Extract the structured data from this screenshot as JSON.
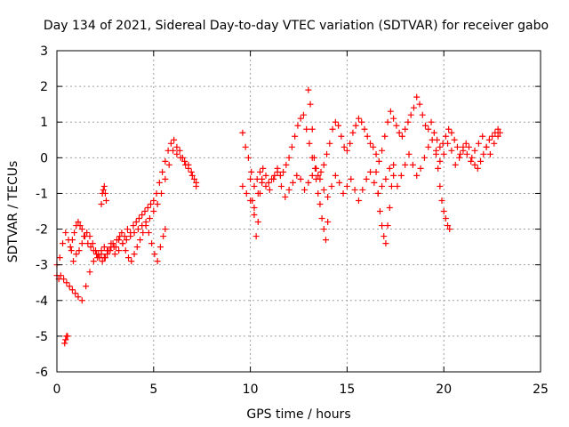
{
  "chart_data": {
    "type": "scatter",
    "title": "Day 134 of 2021, Sidereal Day-to-day VTEC variation (SDTVAR) for receiver gabo",
    "xlabel": "GPS time / hours",
    "ylabel": "SDTVAR / TECUs",
    "xlim": [
      0,
      25
    ],
    "ylim": [
      -6,
      3
    ],
    "grid": true,
    "marker": "+",
    "color": "#ff0000",
    "x_ticks": [
      0,
      5,
      10,
      15,
      20,
      25
    ],
    "x_tick_labels": [
      "0",
      "5",
      "10",
      "15",
      "20",
      "25"
    ],
    "y_ticks": [
      -6,
      -5,
      -4,
      -3,
      -2,
      -1,
      0,
      1,
      2,
      3
    ],
    "y_tick_labels": [
      "-6",
      "-5",
      "-4",
      "-3",
      "-2",
      "-1",
      "0",
      "1",
      "2",
      "3"
    ],
    "series": [
      {
        "name": "SDTVAR",
        "x": [
          0.0,
          0.15,
          0.3,
          0.45,
          0.6,
          0.75,
          0.85,
          1.0,
          1.15,
          1.3,
          1.4,
          1.55,
          1.7,
          1.85,
          2.0,
          2.15,
          2.3,
          2.45,
          2.6,
          2.75,
          2.9,
          3.05,
          3.2,
          3.35,
          3.5,
          3.65,
          3.8,
          3.95,
          4.1,
          4.25,
          4.4,
          4.55,
          4.7,
          4.85,
          5.0,
          5.15,
          5.3,
          5.45,
          5.6,
          5.75,
          5.9,
          6.05,
          6.2,
          6.35,
          6.5,
          6.65,
          6.8,
          6.95,
          7.1,
          7.2,
          0.0,
          0.1,
          0.2,
          0.35,
          0.5,
          0.65,
          0.8,
          0.95,
          1.1,
          1.3,
          1.5,
          1.7,
          1.9,
          2.1,
          2.3,
          2.45,
          2.6,
          2.8,
          3.0,
          3.2,
          3.4,
          3.6,
          3.8,
          4.0,
          4.2,
          4.4,
          4.6,
          4.8,
          5.0,
          5.2,
          5.4,
          5.6,
          5.8,
          6.0,
          6.2,
          6.4,
          6.6,
          6.8,
          7.0,
          7.2,
          0.4,
          0.45,
          0.5,
          0.55,
          2.3,
          2.35,
          2.4,
          2.45,
          2.5,
          2.55,
          0.7,
          0.8,
          0.9,
          1.0,
          1.1,
          1.2,
          1.3,
          1.45,
          1.6,
          1.75,
          1.9,
          2.05,
          2.2,
          2.35,
          2.5,
          2.65,
          2.8,
          2.95,
          3.1,
          3.25,
          3.4,
          3.55,
          3.7,
          3.85,
          4.0,
          4.15,
          4.3,
          4.45,
          4.6,
          4.75,
          4.9,
          5.05,
          5.2,
          5.35,
          5.5,
          5.6,
          9.6,
          9.75,
          9.9,
          10.05,
          10.2,
          10.35,
          10.5,
          10.65,
          10.8,
          10.95,
          11.1,
          11.25,
          11.4,
          11.55,
          11.7,
          11.85,
          12.0,
          12.15,
          12.3,
          12.45,
          12.6,
          12.75,
          12.9,
          13.05,
          13.2,
          13.35,
          13.5,
          13.65,
          13.8,
          13.95,
          14.1,
          14.25,
          14.4,
          14.55,
          14.7,
          14.85,
          15.0,
          15.15,
          15.3,
          15.45,
          15.6,
          15.75,
          15.9,
          16.05,
          16.2,
          16.35,
          16.5,
          16.65,
          16.8,
          16.95,
          17.1,
          17.25,
          17.4,
          17.55,
          17.7,
          17.85,
          18.0,
          18.15,
          18.3,
          18.45,
          18.6,
          18.75,
          18.9,
          19.05,
          19.2,
          19.35,
          19.5,
          19.65,
          19.8,
          19.95,
          20.1,
          20.25,
          20.4,
          20.55,
          20.7,
          20.85,
          21.0,
          21.15,
          21.3,
          21.45,
          21.6,
          21.75,
          21.9,
          22.05,
          22.2,
          22.35,
          22.5,
          22.65,
          22.8,
          22.9,
          9.6,
          9.8,
          10.0,
          10.2,
          10.4,
          10.6,
          10.8,
          11.0,
          11.2,
          11.4,
          11.6,
          11.8,
          12.0,
          12.2,
          12.4,
          12.6,
          12.8,
          13.0,
          13.2,
          13.4,
          13.6,
          13.8,
          14.0,
          14.2,
          14.4,
          14.6,
          14.8,
          15.0,
          15.2,
          15.4,
          15.6,
          15.8,
          16.0,
          16.2,
          16.4,
          16.6,
          16.8,
          17.0,
          17.2,
          17.4,
          17.6,
          17.8,
          18.0,
          18.2,
          18.4,
          18.6,
          18.8,
          19.0,
          19.2,
          19.4,
          19.6,
          19.8,
          20.0,
          20.2,
          20.4,
          20.6,
          20.8,
          21.0,
          21.2,
          21.4,
          21.6,
          21.8,
          22.0,
          22.2,
          22.4,
          22.6,
          22.8,
          10.0,
          10.1,
          10.2,
          10.3,
          10.4,
          10.5,
          10.6,
          13.0,
          13.1,
          13.2,
          13.3,
          13.4,
          13.5,
          13.6,
          13.7,
          13.8,
          13.9,
          14.0,
          16.5,
          16.6,
          16.7,
          16.8,
          16.9,
          17.0,
          17.1,
          17.2,
          17.3,
          17.4,
          19.6,
          19.7,
          19.8,
          19.9,
          20.0,
          20.1,
          20.2,
          20.3
        ],
        "y": [
          -3.0,
          -2.8,
          -2.4,
          -2.1,
          -2.3,
          -2.6,
          -2.9,
          -2.7,
          -2.6,
          -2.4,
          -2.2,
          -2.1,
          -2.2,
          -2.4,
          -2.6,
          -2.7,
          -2.6,
          -2.5,
          -2.7,
          -2.6,
          -2.4,
          -2.5,
          -2.3,
          -2.1,
          -2.2,
          -2.0,
          -2.1,
          -1.9,
          -1.8,
          -1.7,
          -1.6,
          -1.5,
          -1.4,
          -1.3,
          -1.2,
          -1.0,
          -0.7,
          -0.4,
          -0.1,
          0.2,
          0.4,
          0.5,
          0.3,
          0.2,
          0.0,
          -0.2,
          -0.3,
          -0.4,
          -0.6,
          -0.8,
          -3.3,
          -3.4,
          -3.3,
          -3.4,
          -3.5,
          -3.6,
          -3.7,
          -3.8,
          -3.9,
          -4.0,
          -3.6,
          -3.2,
          -2.9,
          -2.8,
          -2.7,
          -2.8,
          -2.6,
          -2.5,
          -2.7,
          -2.6,
          -2.4,
          -2.3,
          -2.2,
          -2.1,
          -2.0,
          -1.9,
          -1.8,
          -1.7,
          -1.5,
          -1.3,
          -1.0,
          -0.6,
          -0.2,
          0.2,
          0.1,
          0.0,
          -0.1,
          -0.2,
          -0.5,
          -0.7,
          -5.2,
          -5.1,
          -5.0,
          -5.0,
          -1.3,
          -1.0,
          -0.9,
          -0.8,
          -1.0,
          -1.2,
          -2.5,
          -2.3,
          -2.1,
          -1.9,
          -1.8,
          -1.9,
          -2.0,
          -2.2,
          -2.4,
          -2.5,
          -2.6,
          -2.7,
          -2.8,
          -2.9,
          -2.8,
          -2.6,
          -2.4,
          -2.5,
          -2.3,
          -2.2,
          -2.4,
          -2.6,
          -2.8,
          -2.9,
          -2.7,
          -2.5,
          -2.3,
          -2.1,
          -1.9,
          -2.1,
          -2.4,
          -2.7,
          -2.9,
          -2.5,
          -2.2,
          -2.0,
          0.7,
          0.3,
          0.0,
          -0.4,
          -0.8,
          -0.6,
          -0.4,
          -0.3,
          -0.5,
          -0.7,
          -0.6,
          -0.5,
          -0.3,
          -0.5,
          -0.4,
          -0.2,
          0.0,
          0.3,
          0.6,
          0.9,
          1.1,
          1.2,
          0.8,
          0.4,
          0.0,
          -0.3,
          -0.5,
          -0.4,
          -0.2,
          0.1,
          0.4,
          0.8,
          1.0,
          0.9,
          0.6,
          0.3,
          0.2,
          0.4,
          0.7,
          0.9,
          1.1,
          1.0,
          0.8,
          0.6,
          0.4,
          0.3,
          0.1,
          -0.1,
          0.2,
          0.6,
          1.0,
          1.3,
          1.1,
          0.9,
          0.7,
          0.6,
          0.8,
          1.0,
          1.2,
          1.4,
          1.7,
          1.5,
          1.2,
          0.9,
          0.8,
          1.0,
          0.7,
          0.5,
          0.3,
          0.4,
          0.6,
          0.8,
          0.7,
          0.5,
          0.3,
          0.1,
          0.2,
          0.4,
          0.3,
          0.0,
          -0.2,
          -0.3,
          -0.1,
          0.1,
          0.3,
          0.5,
          0.6,
          0.7,
          0.8,
          0.7,
          -0.8,
          -1.0,
          -1.2,
          -1.4,
          -1.0,
          -0.7,
          -0.8,
          -0.9,
          -0.6,
          -0.4,
          -0.8,
          -1.1,
          -0.9,
          -0.7,
          -0.5,
          -0.6,
          -0.9,
          -0.7,
          -0.5,
          -0.3,
          -0.6,
          -0.9,
          -1.1,
          -0.8,
          -0.5,
          -0.7,
          -1.0,
          -0.8,
          -0.6,
          -0.9,
          -1.2,
          -0.9,
          -0.6,
          -0.4,
          -0.7,
          -1.0,
          -0.8,
          -0.6,
          -0.3,
          -0.5,
          -0.8,
          -0.5,
          -0.2,
          0.1,
          -0.2,
          -0.5,
          -0.3,
          0.0,
          0.3,
          0.5,
          0.2,
          -0.1,
          0.1,
          0.4,
          0.2,
          -0.2,
          0.0,
          0.3,
          0.1,
          -0.1,
          0.2,
          0.4,
          0.6,
          0.3,
          0.1,
          0.4,
          0.6,
          -0.6,
          -1.2,
          -1.6,
          -2.2,
          -1.8,
          -1.0,
          -0.6,
          1.9,
          1.5,
          0.8,
          0.0,
          -0.6,
          -1.0,
          -1.3,
          -1.7,
          -2.0,
          -2.3,
          -1.8,
          -0.4,
          -1.0,
          -1.5,
          -1.9,
          -2.2,
          -2.4,
          -1.9,
          -1.4,
          -0.8,
          -0.2,
          0.1,
          -0.3,
          -0.8,
          -1.2,
          -1.5,
          -1.7,
          -1.9,
          -2.0
        ]
      }
    ]
  }
}
